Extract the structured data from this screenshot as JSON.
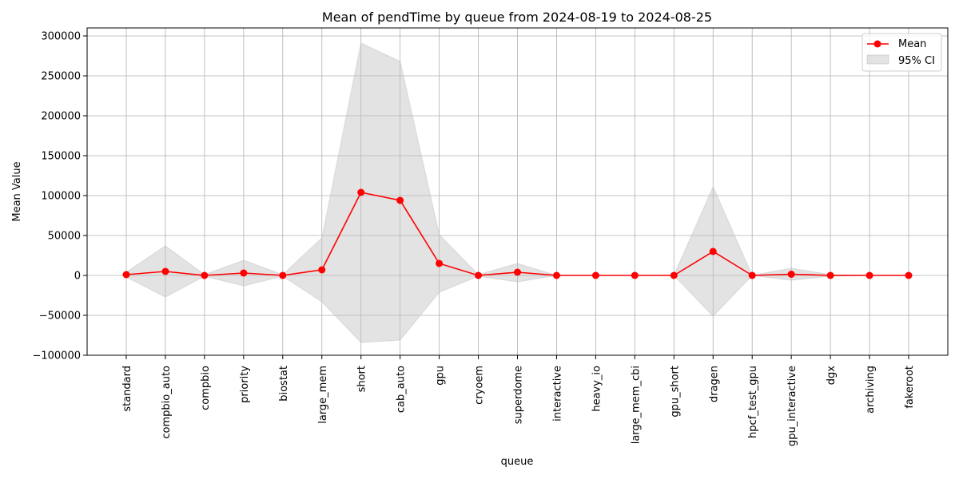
{
  "chart_data": {
    "type": "line",
    "title": "Mean of pendTime by queue from 2024-08-19 to 2024-08-25",
    "xlabel": "queue",
    "ylabel": "Mean Value",
    "categories": [
      "standard",
      "compbio_auto",
      "compbio",
      "priority",
      "biostat",
      "large_mem",
      "short",
      "cab_auto",
      "gpu",
      "cryoem",
      "superdome",
      "interactive",
      "heavy_io",
      "large_mem_cbi",
      "gpu_short",
      "dragen",
      "hpcf_test_gpu",
      "gpu_interactive",
      "dgx",
      "archiving",
      "fakeroot"
    ],
    "series": [
      {
        "name": "Mean",
        "color": "#ff0000",
        "values": [
          1000,
          5000,
          0,
          3000,
          0,
          7000,
          104000,
          94000,
          15000,
          0,
          4000,
          0,
          0,
          0,
          0,
          30000,
          0,
          1500,
          0,
          0,
          0
        ]
      }
    ],
    "ci": {
      "name": "95% CI",
      "color": "#c0c0c0",
      "lower": [
        -2000,
        -27000,
        -1000,
        -13000,
        -1000,
        -33000,
        -84000,
        -81000,
        -21000,
        -1000,
        -8000,
        0,
        0,
        0,
        0,
        -51000,
        0,
        -6000,
        -1000,
        0,
        0
      ],
      "upper": [
        4000,
        37000,
        1000,
        19000,
        1000,
        47000,
        291000,
        268000,
        51000,
        1000,
        15000,
        0,
        0,
        0,
        0,
        111000,
        0,
        9000,
        1000,
        0,
        0
      ]
    },
    "ylim": [
      -100000,
      300000
    ],
    "yticks": [
      -100000,
      -50000,
      0,
      50000,
      100000,
      150000,
      200000,
      250000,
      300000
    ],
    "ytick_labels": [
      "−100000",
      "−50000",
      "0",
      "50000",
      "100000",
      "150000",
      "200000",
      "250000",
      "300000"
    ],
    "grid": true,
    "legend_position": "top-right"
  }
}
